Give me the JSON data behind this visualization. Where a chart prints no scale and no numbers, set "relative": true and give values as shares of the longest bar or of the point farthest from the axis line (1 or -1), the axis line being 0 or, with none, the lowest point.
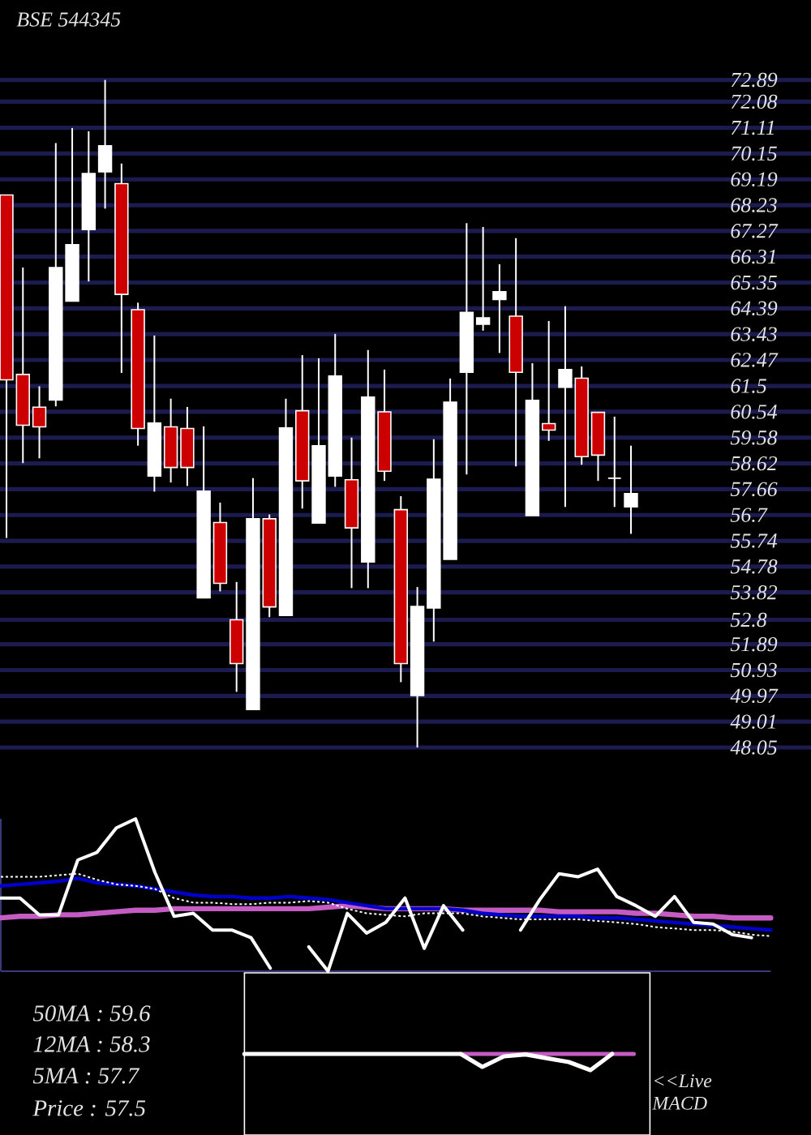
{
  "chart_data": [
    {
      "type": "candlestick",
      "title": "BSE 544345",
      "categories": [
        null,
        null,
        null,
        null,
        null,
        null,
        null,
        null,
        null,
        null,
        null,
        null,
        null,
        null,
        null,
        null,
        null,
        null,
        null,
        null,
        null,
        null,
        null,
        null,
        null,
        null,
        null,
        null,
        null,
        null,
        null,
        null,
        null,
        null,
        null,
        null,
        null,
        null,
        null
      ],
      "ohlc": [
        [
          68.61,
          68.61,
          55.85,
          61.73
        ],
        [
          61.93,
          65.91,
          58.63,
          60.04
        ],
        [
          60.71,
          61.49,
          58.81,
          59.98
        ],
        [
          60.98,
          70.54,
          60.74,
          65.91
        ],
        [
          64.66,
          71.1,
          64.66,
          66.76
        ],
        [
          67.32,
          70.98,
          65.39,
          69.41
        ],
        [
          69.47,
          72.89,
          68.1,
          70.44
        ],
        [
          69.03,
          69.78,
          61.99,
          64.91
        ],
        [
          64.34,
          64.6,
          59.28,
          59.92
        ],
        [
          58.15,
          63.38,
          57.57,
          60.12
        ],
        [
          59.98,
          61.03,
          57.91,
          58.47
        ],
        [
          59.92,
          60.72,
          57.78,
          58.47
        ],
        [
          53.62,
          60.0,
          53.62,
          57.59
        ],
        [
          56.42,
          57.16,
          53.86,
          54.16
        ],
        [
          52.8,
          54.21,
          50.12,
          51.17
        ],
        [
          49.46,
          58.07,
          49.46,
          56.56
        ],
        [
          56.56,
          56.72,
          52.9,
          53.28
        ],
        [
          52.96,
          61.03,
          52.96,
          59.94
        ],
        [
          60.58,
          62.65,
          56.94,
          57.97
        ],
        [
          56.4,
          62.53,
          56.4,
          59.28
        ],
        [
          58.15,
          63.44,
          57.75,
          61.87
        ],
        [
          58.01,
          59.58,
          53.98,
          56.22
        ],
        [
          54.95,
          62.84,
          53.98,
          61.09
        ],
        [
          60.54,
          62.11,
          57.97,
          58.33
        ],
        [
          56.9,
          57.4,
          50.48,
          51.17
        ],
        [
          49.98,
          54.02,
          48.05,
          53.3
        ],
        [
          53.24,
          59.52,
          51.99,
          58.03
        ],
        [
          55.05,
          61.78,
          55.05,
          60.9
        ],
        [
          62.01,
          67.56,
          58.21,
          64.24
        ],
        [
          63.8,
          67.42,
          63.56,
          64.04
        ],
        [
          64.72,
          66.03,
          62.73,
          65.01
        ],
        [
          64.1,
          67.0,
          58.51,
          62.01
        ],
        [
          56.68,
          62.35,
          56.68,
          60.97
        ],
        [
          60.1,
          63.92,
          59.46,
          59.86
        ],
        [
          61.45,
          64.47,
          57.0,
          62.11
        ],
        [
          61.79,
          62.23,
          58.57,
          58.87
        ],
        [
          60.52,
          60.52,
          57.97,
          58.93
        ],
        [
          58.07,
          60.36,
          57.0,
          58.07
        ],
        [
          57.0,
          59.28,
          56.0,
          57.5
        ]
      ],
      "colors": [
        "#cc0000",
        "#cc0000",
        "#cc0000",
        "#ffffff",
        "#ffffff",
        "#ffffff",
        "#ffffff",
        "#cc0000",
        "#cc0000",
        "#ffffff",
        "#cc0000",
        "#cc0000",
        "#ffffff",
        "#cc0000",
        "#cc0000",
        "#ffffff",
        "#cc0000",
        "#ffffff",
        "#cc0000",
        "#ffffff",
        "#ffffff",
        "#cc0000",
        "#ffffff",
        "#cc0000",
        "#cc0000",
        "#ffffff",
        "#ffffff",
        "#ffffff",
        "#ffffff",
        "#ffffff",
        "#ffffff",
        "#cc0000",
        "#ffffff",
        "#cc0000",
        "#ffffff",
        "#cc0000",
        "#cc0000",
        "#ffffff",
        "#ffffff"
      ],
      "ylim": [
        48.05,
        72.89
      ],
      "yticks": [
        72.89,
        72.08,
        71.11,
        70.15,
        69.19,
        68.23,
        67.27,
        66.31,
        65.35,
        64.39,
        63.43,
        62.47,
        61.5,
        60.54,
        59.58,
        58.62,
        57.66,
        56.7,
        55.74,
        54.78,
        53.82,
        52.8,
        51.89,
        50.93,
        49.97,
        49.01,
        48.05
      ],
      "grid": "y",
      "tick_labels": "y"
    },
    {
      "type": "line",
      "relative": true,
      "categories": [
        null,
        null,
        null,
        null,
        null,
        null,
        null,
        null,
        null,
        null,
        null,
        null,
        null,
        null,
        null,
        null,
        null,
        null,
        null,
        null,
        null,
        null,
        null,
        null,
        null,
        null,
        null,
        null,
        null,
        null,
        null,
        null,
        null,
        null,
        null,
        null,
        null,
        null,
        null,
        null,
        null
      ],
      "series": [
        {
          "color": "#ffffff",
          "values": [
            0.48,
            0.48,
            0.37,
            0.37,
            0.73,
            0.78,
            0.94,
            1.0,
            0.65,
            0.36,
            0.38,
            0.27,
            0.27,
            0.22,
            0.02,
            null,
            0.16,
            0.0,
            0.38,
            0.25,
            0.32,
            0.48,
            0.15,
            0.43,
            0.27,
            null,
            null,
            0.27,
            0.47,
            0.64,
            0.62,
            0.67,
            0.49,
            0.43,
            0.36,
            0.49,
            0.32,
            0.31,
            0.24,
            0.22,
            null
          ]
        },
        {
          "color": "#ffffff",
          "line_style": "dotted",
          "values": [
            0.62,
            0.62,
            0.62,
            0.63,
            0.64,
            0.6,
            0.57,
            0.56,
            0.54,
            0.48,
            0.45,
            0.45,
            0.44,
            0.44,
            0.45,
            0.45,
            0.46,
            0.45,
            0.41,
            0.38,
            0.37,
            0.36,
            0.38,
            0.38,
            0.38,
            0.36,
            0.35,
            0.34,
            0.34,
            0.34,
            0.34,
            0.33,
            0.32,
            0.31,
            0.29,
            0.28,
            0.27,
            0.27,
            0.26,
            0.24,
            0.23
          ]
        },
        {
          "color": "#0000cc",
          "values": [
            0.56,
            0.57,
            0.58,
            0.59,
            0.61,
            0.58,
            0.57,
            0.56,
            0.54,
            0.52,
            0.5,
            0.49,
            0.49,
            0.48,
            0.48,
            0.49,
            0.48,
            0.47,
            0.45,
            0.43,
            0.41,
            0.41,
            0.41,
            0.41,
            0.4,
            0.38,
            0.37,
            0.36,
            0.36,
            0.36,
            0.36,
            0.35,
            0.35,
            0.34,
            0.33,
            0.32,
            0.31,
            0.3,
            0.29,
            0.28,
            0.27
          ]
        },
        {
          "color": "#c45cc4",
          "values": [
            0.35,
            0.36,
            0.36,
            0.37,
            0.37,
            0.38,
            0.39,
            0.4,
            0.4,
            0.41,
            0.41,
            0.41,
            0.41,
            0.41,
            0.41,
            0.41,
            0.41,
            0.42,
            0.43,
            0.42,
            0.41,
            0.41,
            0.41,
            0.41,
            0.4,
            0.4,
            0.4,
            0.4,
            0.4,
            0.39,
            0.39,
            0.39,
            0.39,
            0.38,
            0.38,
            0.37,
            0.36,
            0.36,
            0.35,
            0.35,
            0.35
          ]
        }
      ],
      "annotations": [
        "50MA : 59.6",
        "12MA : 58.3",
        "5MA : 57.7",
        "Price : 57.5"
      ]
    },
    {
      "type": "line",
      "relative": true,
      "title": "<<Live MACD",
      "categories": [
        null,
        null,
        null,
        null,
        null,
        null,
        null,
        null,
        null,
        null,
        null,
        null,
        null,
        null,
        null,
        null,
        null,
        null,
        null
      ],
      "series": [
        {
          "color": "#ffffff",
          "values": [
            1,
            1,
            1,
            1,
            1,
            1,
            1,
            1,
            1,
            1,
            1,
            0.2,
            0.85,
            0.97,
            0.73,
            0.5,
            0,
            1,
            null
          ]
        },
        {
          "color": "#c45cc4",
          "values": [
            null,
            null,
            null,
            null,
            null,
            null,
            null,
            null,
            null,
            null,
            1,
            1,
            1,
            1,
            1,
            1,
            1,
            1,
            1
          ]
        }
      ]
    }
  ]
}
